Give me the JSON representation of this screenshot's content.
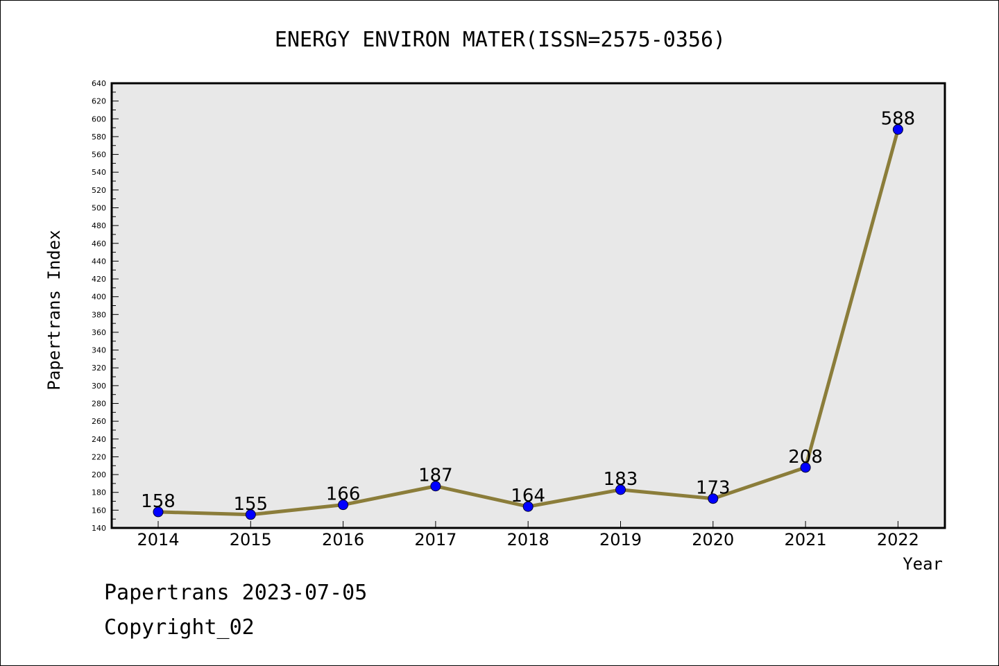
{
  "chart_data": {
    "type": "line",
    "title": "ENERGY ENVIRON MATER(ISSN=2575-0356)",
    "xlabel": "Year",
    "ylabel": "Papertrans Index",
    "categories": [
      "2014",
      "2015",
      "2016",
      "2017",
      "2018",
      "2019",
      "2020",
      "2021",
      "2022"
    ],
    "series": [
      {
        "values": [
          158,
          155,
          166,
          187,
          164,
          183,
          173,
          208,
          588
        ]
      }
    ],
    "ylim": [
      140,
      640
    ],
    "ytick_step": 20,
    "grid": false,
    "colors": {
      "plot_bg": "#e8e8e8",
      "line": "#8b7d3a",
      "marker": "#0000ff"
    }
  },
  "footer": {
    "line1": "Papertrans 2023-07-05",
    "line2": "Copyright_02"
  }
}
